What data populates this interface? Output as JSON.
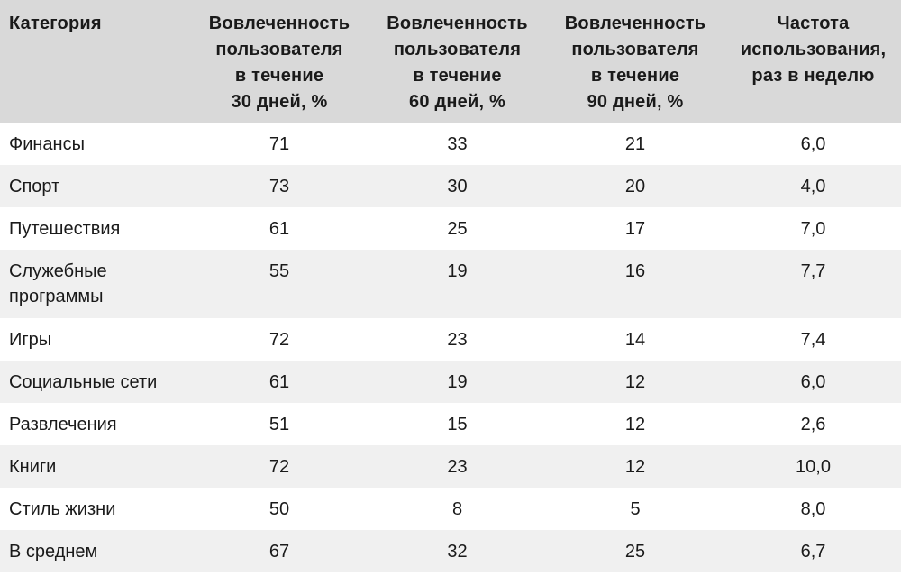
{
  "table": {
    "headers": [
      {
        "lines": [
          "Категория"
        ]
      },
      {
        "lines": [
          "Вовлеченность",
          "пользователя",
          "в течение",
          "30 дней, %"
        ]
      },
      {
        "lines": [
          "Вовлеченность",
          "пользователя",
          "в течение",
          "60 дней, %"
        ]
      },
      {
        "lines": [
          "Вовлеченность",
          "пользователя",
          "в течение",
          "90 дней, %"
        ]
      },
      {
        "lines": [
          "Частота",
          "использования,",
          "раз в неделю"
        ]
      }
    ],
    "rows": [
      {
        "category": [
          "Финансы"
        ],
        "d30": "71",
        "d60": "33",
        "d90": "21",
        "freq": "6,0"
      },
      {
        "category": [
          "Спорт"
        ],
        "d30": "73",
        "d60": "30",
        "d90": "20",
        "freq": "4,0"
      },
      {
        "category": [
          "Путешествия"
        ],
        "d30": "61",
        "d60": "25",
        "d90": "17",
        "freq": "7,0"
      },
      {
        "category": [
          "Служебные",
          "программы"
        ],
        "d30": "55",
        "d60": "19",
        "d90": "16",
        "freq": "7,7"
      },
      {
        "category": [
          "Игры"
        ],
        "d30": "72",
        "d60": "23",
        "d90": "14",
        "freq": "7,4"
      },
      {
        "category": [
          "Социальные сети"
        ],
        "d30": "61",
        "d60": "19",
        "d90": "12",
        "freq": "6,0"
      },
      {
        "category": [
          "Развлечения"
        ],
        "d30": "51",
        "d60": "15",
        "d90": "12",
        "freq": "2,6"
      },
      {
        "category": [
          "Книги"
        ],
        "d30": "72",
        "d60": "23",
        "d90": "12",
        "freq": "10,0"
      },
      {
        "category": [
          "Стиль жизни"
        ],
        "d30": "50",
        "d60": "8",
        "d90": "5",
        "freq": "8,0"
      },
      {
        "category": [
          "В среднем"
        ],
        "d30": "67",
        "d60": "32",
        "d90": "25",
        "freq": "6,7"
      }
    ]
  },
  "colors": {
    "header_bg": "#d9d9d9",
    "row_alt_bg": "#f0f0f0",
    "row_bg": "#ffffff",
    "text": "#1a1a1a"
  }
}
